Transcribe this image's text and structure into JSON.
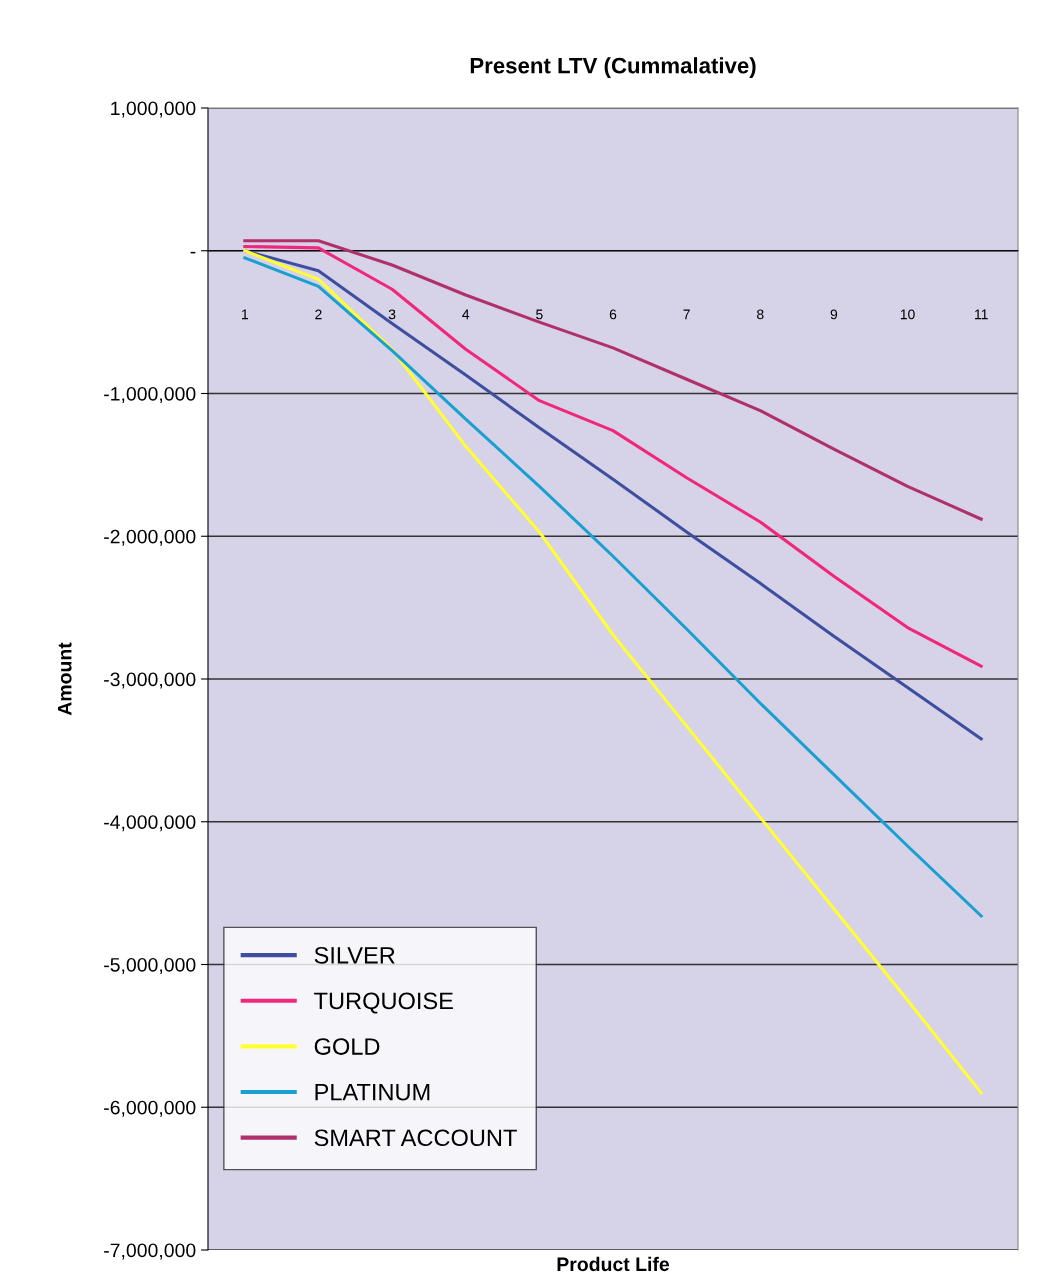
{
  "chart_data": {
    "type": "line",
    "title": "Present LTV (Cummalative)",
    "xlabel": "Product Life",
    "ylabel": "Amount",
    "categories": [
      "1",
      "2",
      "3",
      "4",
      "5",
      "6",
      "7",
      "8",
      "9",
      "10",
      "11"
    ],
    "series": [
      {
        "name": "SILVER",
        "color": "#3f4f9f",
        "values": [
          0,
          -140000,
          -510000,
          -870000,
          -1240000,
          -1600000,
          -1970000,
          -2330000,
          -2700000,
          -3060000,
          -3420000
        ]
      },
      {
        "name": "TURQUOISE",
        "color": "#f0287c",
        "values": [
          30000,
          20000,
          -270000,
          -690000,
          -1050000,
          -1260000,
          -1590000,
          -1900000,
          -2280000,
          -2640000,
          -2910000
        ]
      },
      {
        "name": "GOLD",
        "color": "#ffff33",
        "values": [
          0,
          -200000,
          -690000,
          -1370000,
          -1970000,
          -2690000,
          -3330000,
          -3970000,
          -4610000,
          -5250000,
          -5900000
        ]
      },
      {
        "name": "PLATINUM",
        "color": "#1aa0d0",
        "values": [
          -50000,
          -250000,
          -700000,
          -1180000,
          -1650000,
          -2140000,
          -2650000,
          -3170000,
          -3670000,
          -4170000,
          -4660000
        ]
      },
      {
        "name": "SMART ACCOUNT",
        "color": "#b0306a",
        "values": [
          70000,
          70000,
          -100000,
          -310000,
          -500000,
          -680000,
          -900000,
          -1120000,
          -1390000,
          -1650000,
          -1880000
        ]
      }
    ],
    "ylim": [
      -7000000,
      1000000
    ],
    "yticks": [
      {
        "value": 1000000,
        "label": "1,000,000"
      },
      {
        "value": 0,
        "label": "-"
      },
      {
        "value": -1000000,
        "label": "-1,000,000"
      },
      {
        "value": -2000000,
        "label": "-2,000,000"
      },
      {
        "value": -3000000,
        "label": "-3,000,000"
      },
      {
        "value": -4000000,
        "label": "-4,000,000"
      },
      {
        "value": -5000000,
        "label": "-5,000,000"
      },
      {
        "value": -6000000,
        "label": "-6,000,000"
      },
      {
        "value": -7000000,
        "label": "-7,000,000"
      }
    ],
    "grid": "y",
    "legend": "bottom left",
    "marker": "none",
    "line_style": "solid"
  }
}
